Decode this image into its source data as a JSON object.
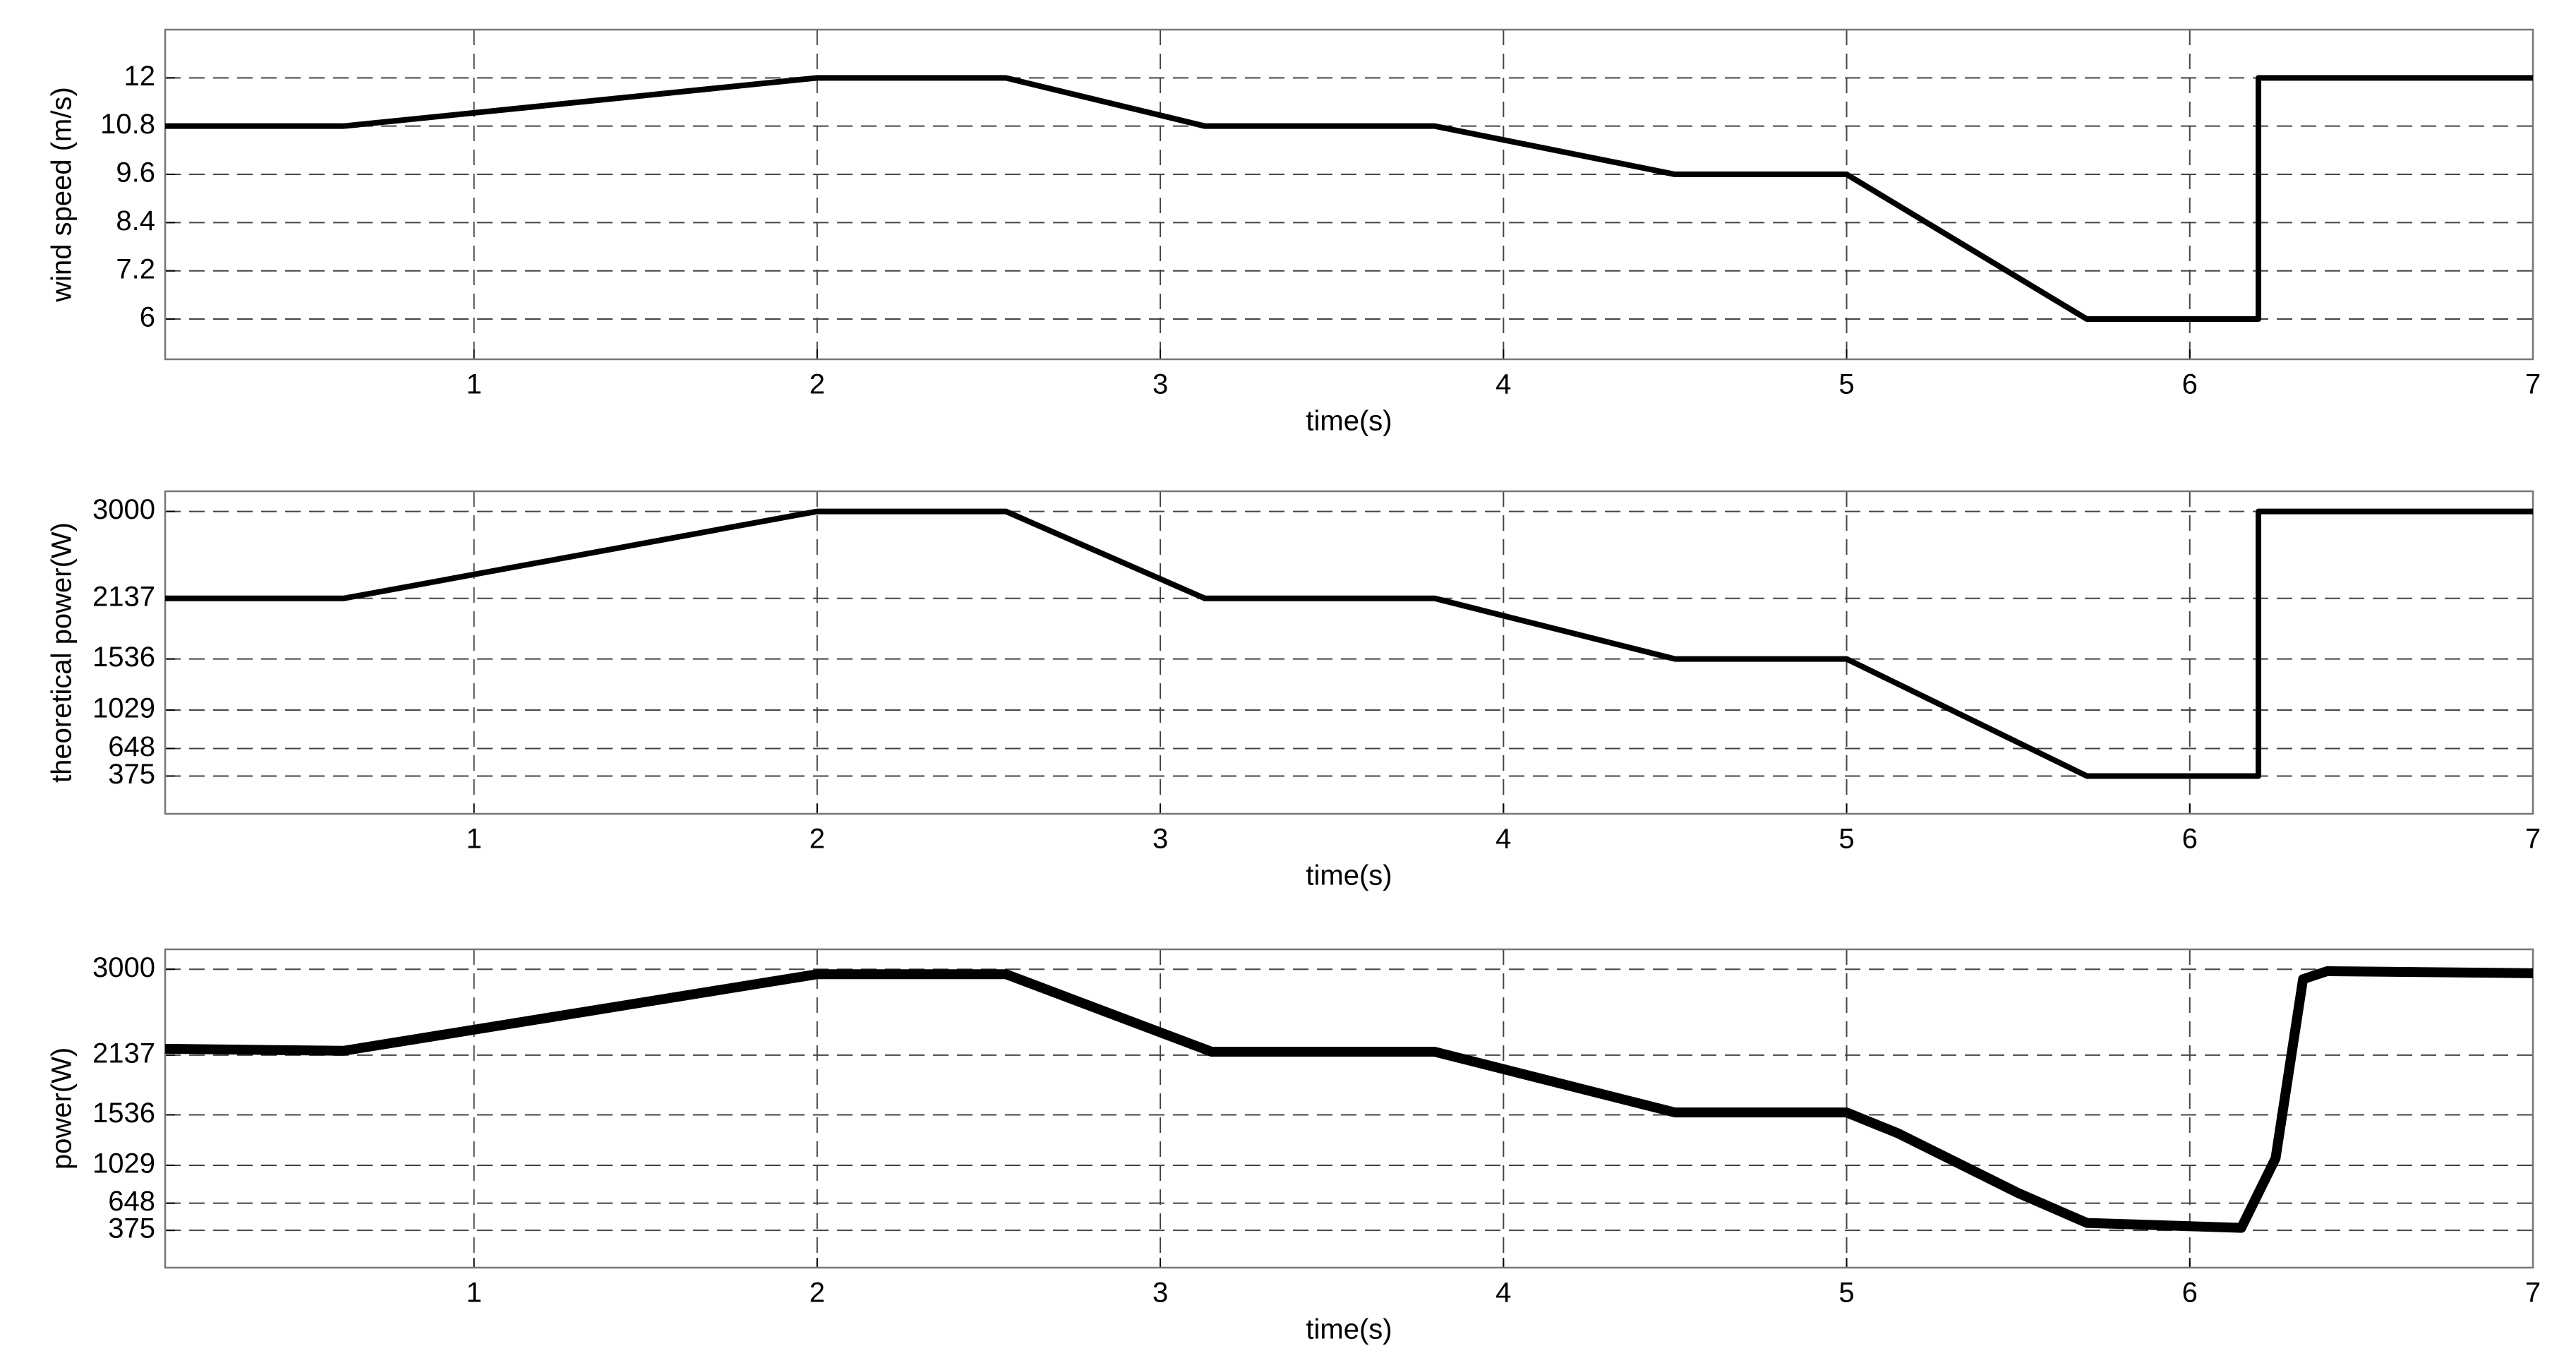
{
  "chart_data": [
    {
      "type": "line",
      "xlabel": "time(s)",
      "ylabel": "wind speed (m/s)",
      "x": [
        0.1,
        0.62,
        2,
        2.55,
        3.13,
        3.8,
        4.5,
        5,
        5.7,
        6.2,
        6.2,
        7
      ],
      "series": [
        {
          "color": "#000000",
          "values": [
            10.8,
            10.8,
            12,
            12,
            10.8,
            10.8,
            9.6,
            9.6,
            6,
            6,
            12,
            12
          ]
        }
      ],
      "xlim": [
        0.1,
        7
      ],
      "xticks": [
        1,
        2,
        3,
        4,
        5,
        6,
        7
      ],
      "ylim": [
        5,
        13.2
      ],
      "yticks": [
        6,
        7.2,
        8.4,
        9.6,
        10.8,
        12
      ],
      "grid": true
    },
    {
      "type": "line",
      "xlabel": "time(s)",
      "ylabel": "theoretical power(W)",
      "x": [
        0.1,
        0.62,
        2,
        2.55,
        3.13,
        3.8,
        4.5,
        5,
        5.7,
        6.2,
        6.2,
        7
      ],
      "series": [
        {
          "color": "#000000",
          "values": [
            2137,
            2137,
            3000,
            3000,
            2137,
            2137,
            1536,
            1536,
            375,
            375,
            3000,
            3000
          ]
        }
      ],
      "xlim": [
        0.1,
        7
      ],
      "xticks": [
        1,
        2,
        3,
        4,
        5,
        6,
        7
      ],
      "ylim": [
        0,
        3200
      ],
      "yticks": [
        375,
        648,
        1029,
        1536,
        2137,
        3000
      ],
      "grid": true
    },
    {
      "type": "line",
      "xlabel": "time(s)",
      "ylabel": "power(W)",
      "x": [
        0.1,
        0.62,
        2,
        2.55,
        3.15,
        3.8,
        4.5,
        5,
        5.15,
        5.5,
        5.7,
        6.15,
        6.25,
        6.33,
        6.4,
        7
      ],
      "series": [
        {
          "color": "#000000",
          "values": [
            2200,
            2180,
            2950,
            2950,
            2170,
            2170,
            1560,
            1560,
            1350,
            750,
            450,
            400,
            1100,
            2900,
            2980,
            2960
          ]
        }
      ],
      "xlim": [
        0.1,
        7
      ],
      "xticks": [
        1,
        2,
        3,
        4,
        5,
        6,
        7
      ],
      "ylim": [
        0,
        3200
      ],
      "yticks": [
        375,
        648,
        1029,
        1536,
        2137,
        3000
      ],
      "grid": true
    }
  ]
}
